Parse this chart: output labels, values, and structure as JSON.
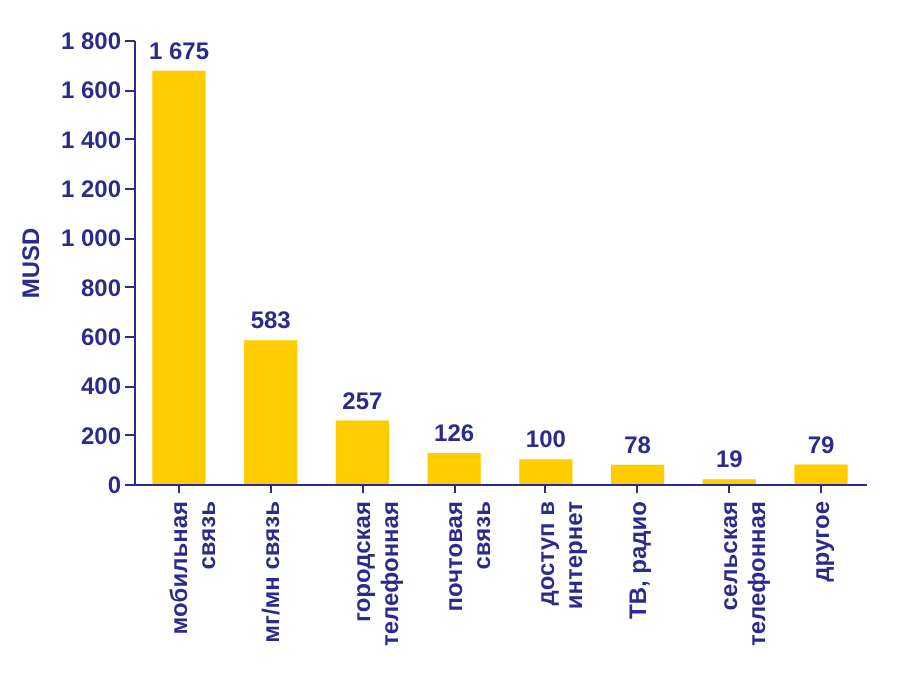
{
  "chart_data": {
    "type": "bar",
    "ylabel": "MUSD",
    "categories": [
      "мобильная\nсвязь",
      "мг/мн связь",
      "городская\nтелефонная",
      "почтовая\nсвязь",
      "доступ в\nинтернет",
      "ТВ, радио",
      "сельская\nтелефонная",
      "другое"
    ],
    "values": [
      1675,
      583,
      257,
      126,
      100,
      78,
      19,
      79
    ],
    "value_labels": [
      "1 675",
      "583",
      "257",
      "126",
      "100",
      "78",
      "19",
      "79"
    ],
    "color": "#ffcc00",
    "ylim": [
      0,
      1800
    ],
    "yticks": [
      0,
      200,
      400,
      600,
      800,
      {
        "value": 1000,
        "label": "1 000"
      },
      {
        "value": 1200,
        "label": "1 200"
      },
      {
        "value": 1400,
        "label": "1 400"
      },
      {
        "value": 1600,
        "label": "1 600"
      },
      {
        "value": 1800,
        "label": "1 800"
      }
    ],
    "grid": false
  }
}
